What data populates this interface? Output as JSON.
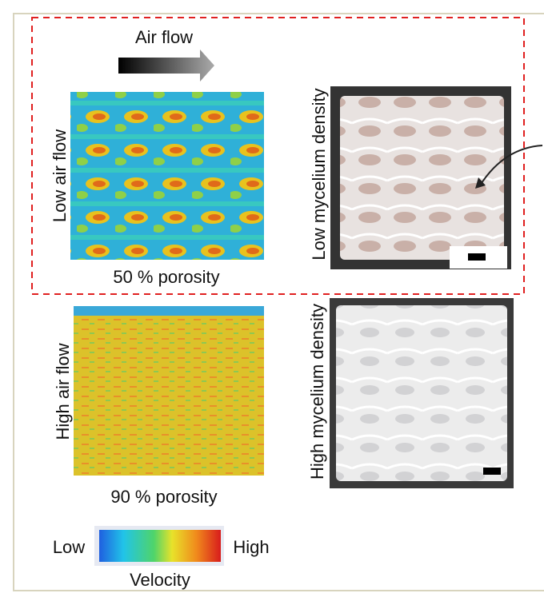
{
  "panel": {
    "top_row": {
      "flow_label": "Air flow",
      "side_label": "Low air flow",
      "porosity": "50 % porosity",
      "photo_label": "Low mycelium density"
    },
    "bottom_row": {
      "side_label": "High air flow",
      "porosity": "90 % porosity",
      "photo_label": "High mycelium density"
    },
    "colorbar": {
      "low": "Low",
      "high": "High",
      "title": "Velocity"
    }
  }
}
